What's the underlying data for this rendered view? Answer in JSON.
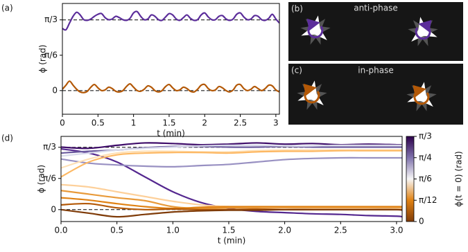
{
  "chart_data": [
    {
      "type": "line",
      "panel_label": "(a)",
      "xlabel": "t (min)",
      "ylabel": "ϕ (rad)",
      "xlim": [
        0,
        3.05
      ],
      "ylim": [
        -0.35,
        1.29
      ],
      "xticks": [
        0,
        0.5,
        1,
        1.5,
        2,
        2.5,
        3
      ],
      "yticks": [
        0,
        {
          "value": 0.5236,
          "label": "π/6"
        },
        {
          "value": 1.0472,
          "label": "π/3"
        }
      ],
      "hlines": [
        0,
        1.0472
      ],
      "x": [
        0,
        0.05,
        0.1,
        0.15,
        0.2,
        0.25,
        0.3,
        0.35,
        0.4,
        0.45,
        0.5,
        0.55,
        0.6,
        0.65,
        0.7,
        0.75,
        0.8,
        0.85,
        0.9,
        0.95,
        1.0,
        1.05,
        1.1,
        1.15,
        1.2,
        1.25,
        1.3,
        1.35,
        1.4,
        1.45,
        1.5,
        1.55,
        1.6,
        1.65,
        1.7,
        1.75,
        1.8,
        1.85,
        1.9,
        1.95,
        2.0,
        2.05,
        2.1,
        2.15,
        2.2,
        2.25,
        2.3,
        2.35,
        2.4,
        2.45,
        2.5,
        2.55,
        2.6,
        2.65,
        2.7,
        2.75,
        2.8,
        2.85,
        2.9,
        2.95,
        3.0,
        3.05
      ],
      "series": [
        {
          "color": "#5b2d9a",
          "values": [
            0.92,
            0.9,
            1.0,
            1.1,
            1.16,
            1.12,
            1.05,
            1.04,
            1.06,
            1.1,
            1.13,
            1.14,
            1.08,
            1.05,
            1.06,
            1.1,
            1.08,
            1.05,
            1.04,
            1.07,
            1.15,
            1.17,
            1.1,
            1.05,
            1.06,
            1.12,
            1.1,
            1.05,
            1.04,
            1.09,
            1.14,
            1.12,
            1.06,
            1.04,
            1.08,
            1.12,
            1.07,
            1.04,
            1.05,
            1.12,
            1.15,
            1.09,
            1.05,
            1.05,
            1.1,
            1.11,
            1.06,
            1.04,
            1.06,
            1.13,
            1.15,
            1.09,
            1.05,
            1.06,
            1.11,
            1.1,
            1.05,
            1.04,
            1.07,
            1.13,
            1.06,
            1.0
          ]
        },
        {
          "color": "#b35806",
          "values": [
            0.02,
            0.08,
            0.14,
            0.08,
            0.02,
            -0.02,
            -0.03,
            -0.01,
            0.05,
            0.09,
            0.04,
            0.0,
            0.01,
            0.05,
            0.03,
            -0.01,
            -0.02,
            0.0,
            0.06,
            0.1,
            0.05,
            0.0,
            -0.01,
            0.02,
            0.07,
            0.05,
            0.0,
            -0.02,
            0.0,
            0.06,
            0.09,
            0.04,
            0.0,
            0.01,
            0.05,
            0.03,
            -0.01,
            -0.02,
            0.02,
            0.08,
            0.09,
            0.03,
            0.0,
            0.01,
            0.06,
            0.04,
            0.0,
            -0.02,
            0.01,
            0.08,
            0.09,
            0.03,
            0.0,
            0.02,
            0.06,
            0.03,
            0.0,
            0.03,
            0.08,
            0.07,
            0.01,
            -0.02
          ]
        }
      ]
    },
    {
      "type": "line",
      "panel_label": "(d)",
      "xlabel": "t (min)",
      "ylabel": "ϕ (rad)",
      "xlim": [
        0,
        3.05
      ],
      "ylim": [
        -0.2,
        1.23
      ],
      "xticks": [
        {
          "value": 0,
          "label": "0.0"
        },
        0.5,
        {
          "value": 1,
          "label": "1.0"
        },
        1.5,
        {
          "value": 2,
          "label": "2.0"
        },
        2.5,
        {
          "value": 3,
          "label": "3.0"
        }
      ],
      "yticks": [
        0,
        {
          "value": 0.5236,
          "label": "π/6"
        },
        {
          "value": 1.0472,
          "label": "π/3"
        }
      ],
      "hlines": [
        0,
        1.0472
      ],
      "x": [
        0,
        0.25,
        0.5,
        0.75,
        1.0,
        1.25,
        1.5,
        1.75,
        2.0,
        2.25,
        2.5,
        2.75,
        3.0,
        3.05
      ],
      "series": [
        {
          "color": "#3f0d6a",
          "values": [
            1.05,
            1.03,
            1.08,
            1.12,
            1.11,
            1.09,
            1.1,
            1.12,
            1.1,
            1.11,
            1.09,
            1.1,
            1.09,
            1.09
          ]
        },
        {
          "color": "#54278f",
          "values": [
            1.02,
            0.95,
            0.8,
            0.55,
            0.3,
            0.12,
            0.02,
            -0.03,
            -0.05,
            -0.07,
            -0.08,
            -0.1,
            -0.11,
            -0.12
          ]
        },
        {
          "color": "#9890c2",
          "values": [
            0.85,
            0.78,
            0.75,
            0.73,
            0.72,
            0.74,
            0.76,
            0.8,
            0.84,
            0.86,
            0.87,
            0.87,
            0.87,
            0.87
          ]
        },
        {
          "color": "#6a5a9e",
          "values": [
            0.95,
            0.98,
            1.0,
            1.04,
            1.06,
            1.06,
            1.05,
            1.05,
            1.06,
            1.05,
            1.05,
            1.05,
            1.05,
            1.05
          ]
        },
        {
          "color": "#d8daeb",
          "values": [
            0.9,
            0.95,
            1.0,
            1.03,
            1.05,
            1.07,
            1.08,
            1.08,
            1.07,
            1.07,
            1.08,
            1.08,
            1.08,
            1.08
          ]
        },
        {
          "color": "#fee0b6",
          "values": [
            0.7,
            0.85,
            0.95,
            0.98,
            0.98,
            0.97,
            0.97,
            0.99,
            1.0,
            1.0,
            1.0,
            1.0,
            1.0,
            1.0
          ]
        },
        {
          "color": "#fdb863",
          "values": [
            0.55,
            0.8,
            0.92,
            0.95,
            0.96,
            0.96,
            0.95,
            0.97,
            0.98,
            0.98,
            0.99,
            0.99,
            0.99,
            0.99
          ]
        },
        {
          "color": "#fdd09a",
          "values": [
            0.42,
            0.38,
            0.3,
            0.22,
            0.14,
            0.08,
            0.05,
            0.03,
            0.03,
            0.02,
            0.02,
            0.02,
            0.02,
            0.02
          ]
        },
        {
          "color": "#e89a3a",
          "values": [
            0.32,
            0.26,
            0.2,
            0.15,
            0.05,
            0.02,
            0.03,
            0.04,
            0.04,
            0.04,
            0.04,
            0.04,
            0.04,
            0.04
          ]
        },
        {
          "color": "#e08214",
          "values": [
            0.2,
            0.16,
            0.1,
            0.05,
            0.02,
            0.04,
            0.05,
            0.05,
            0.05,
            0.05,
            0.05,
            0.05,
            0.05,
            0.05
          ]
        },
        {
          "color": "#b35806",
          "values": [
            0.08,
            0.1,
            0.03,
            0.0,
            0.01,
            0.0,
            0.0,
            0.01,
            0.0,
            0.0,
            0.0,
            0.0,
            0.0,
            0.0
          ]
        },
        {
          "color": "#7f3b08",
          "values": [
            0.0,
            -0.06,
            -0.12,
            -0.08,
            -0.04,
            -0.02,
            -0.01,
            -0.01,
            0.0,
            0.0,
            0.0,
            0.0,
            0.0,
            -0.01
          ]
        }
      ],
      "colorbar": {
        "label": "ϕ(t = 0) (rad)",
        "lim": [
          0,
          1.0472
        ],
        "ticks": [
          0,
          {
            "value": 0.2618,
            "label": "π/12"
          },
          {
            "value": 0.5236,
            "label": "π/6"
          },
          {
            "value": 0.7854,
            "label": "π/4"
          },
          {
            "value": 1.0472,
            "label": "π/3"
          }
        ],
        "colors": [
          "#7f3b08",
          "#e08214",
          "#f7f7f7",
          "#8073ac",
          "#2d004b"
        ]
      }
    }
  ],
  "images": [
    {
      "panel_label": "(b)",
      "caption": "anti-phase"
    },
    {
      "panel_label": "(c)",
      "caption": "in-phase"
    }
  ]
}
